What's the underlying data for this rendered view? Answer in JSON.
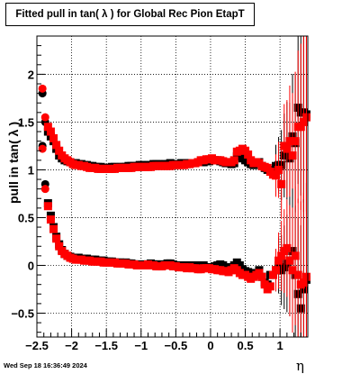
{
  "chart_data": {
    "type": "scatter",
    "title": "Fitted pull in tan( λ ) for Global Rec Pion EtapT",
    "xlabel": "η",
    "ylabel": "pull in tan( λ )",
    "xlim": [
      -2.5,
      1.4
    ],
    "ylim": [
      -0.75,
      2.4
    ],
    "grid": true,
    "x_ticks": [
      {
        "value": -2.5,
        "label": "−2.5"
      },
      {
        "value": -2.0,
        "label": "−2"
      },
      {
        "value": -1.5,
        "label": "−1.5"
      },
      {
        "value": -1.0,
        "label": "−1"
      },
      {
        "value": -0.5,
        "label": "−0.5"
      },
      {
        "value": 0.0,
        "label": "0"
      },
      {
        "value": 0.5,
        "label": "0.5"
      },
      {
        "value": 1.0,
        "label": "1"
      }
    ],
    "y_ticks": [
      {
        "value": -0.5,
        "label": "−0.5"
      },
      {
        "value": 0.0,
        "label": "0"
      },
      {
        "value": 0.5,
        "label": "0.5"
      },
      {
        "value": 1.0,
        "label": "1"
      },
      {
        "value": 1.5,
        "label": "1.5"
      },
      {
        "value": 2.0,
        "label": "2"
      }
    ],
    "series": [
      {
        "role": "sigma",
        "color": "#000000",
        "x": [
          -2.42,
          -2.38,
          -2.34,
          -2.3,
          -2.26,
          -2.22,
          -2.18,
          -2.14,
          -2.1,
          -2.06,
          -2.02,
          -1.98,
          -1.94,
          -1.9,
          -1.86,
          -1.82,
          -1.78,
          -1.74,
          -1.7,
          -1.66,
          -1.62,
          -1.58,
          -1.54,
          -1.5,
          -1.46,
          -1.42,
          -1.38,
          -1.34,
          -1.3,
          -1.26,
          -1.22,
          -1.18,
          -1.14,
          -1.1,
          -1.06,
          -1.02,
          -0.98,
          -0.94,
          -0.9,
          -0.86,
          -0.82,
          -0.78,
          -0.74,
          -0.7,
          -0.66,
          -0.62,
          -0.58,
          -0.54,
          -0.5,
          -0.46,
          -0.42,
          -0.38,
          -0.34,
          -0.3,
          -0.26,
          -0.22,
          -0.18,
          -0.14,
          -0.1,
          -0.06,
          -0.02,
          0.02,
          0.06,
          0.1,
          0.14,
          0.18,
          0.22,
          0.26,
          0.3,
          0.34,
          0.38,
          0.42,
          0.46,
          0.5,
          0.54,
          0.58,
          0.62,
          0.66,
          0.7,
          0.74,
          0.78,
          0.82,
          0.86,
          0.9,
          0.94,
          0.98,
          1.02,
          1.06,
          1.1,
          1.14,
          1.18,
          1.22,
          1.26,
          1.3,
          1.34,
          1.38
        ],
        "y": [
          1.8,
          1.5,
          1.4,
          1.35,
          1.3,
          1.22,
          1.15,
          1.12,
          1.1,
          1.09,
          1.08,
          1.07,
          1.07,
          1.06,
          1.06,
          1.05,
          1.05,
          1.04,
          1.04,
          1.03,
          1.03,
          1.03,
          1.02,
          1.02,
          1.02,
          1.03,
          1.03,
          1.02,
          1.03,
          1.03,
          1.03,
          1.04,
          1.04,
          1.04,
          1.04,
          1.05,
          1.05,
          1.04,
          1.05,
          1.05,
          1.06,
          1.06,
          1.06,
          1.05,
          1.06,
          1.06,
          1.07,
          1.06,
          1.06,
          1.06,
          1.07,
          1.07,
          1.06,
          1.07,
          1.07,
          1.07,
          1.08,
          1.08,
          1.08,
          1.09,
          1.09,
          1.1,
          1.1,
          1.1,
          1.09,
          1.08,
          1.07,
          1.08,
          1.06,
          1.07,
          1.14,
          1.15,
          1.12,
          1.1,
          1.08,
          1.06,
          1.05,
          1.07,
          1.08,
          1.04,
          1.02,
          1.0,
          1.0,
          0.98,
          1.04,
          1.05,
          1.05,
          1.15,
          1.2,
          1.12,
          1.35,
          1.28,
          1.65,
          1.6,
          1.6,
          1.58
        ]
      },
      {
        "role": "sigma",
        "color": "#ff0000",
        "x": [
          -2.42,
          -2.38,
          -2.34,
          -2.3,
          -2.26,
          -2.22,
          -2.18,
          -2.14,
          -2.1,
          -2.06,
          -2.02,
          -1.98,
          -1.94,
          -1.9,
          -1.86,
          -1.82,
          -1.78,
          -1.74,
          -1.7,
          -1.66,
          -1.62,
          -1.58,
          -1.54,
          -1.5,
          -1.46,
          -1.42,
          -1.38,
          -1.34,
          -1.3,
          -1.26,
          -1.22,
          -1.18,
          -1.14,
          -1.1,
          -1.06,
          -1.02,
          -0.98,
          -0.94,
          -0.9,
          -0.86,
          -0.82,
          -0.78,
          -0.74,
          -0.7,
          -0.66,
          -0.62,
          -0.58,
          -0.54,
          -0.5,
          -0.46,
          -0.42,
          -0.38,
          -0.34,
          -0.3,
          -0.26,
          -0.22,
          -0.18,
          -0.14,
          -0.1,
          -0.06,
          -0.02,
          0.02,
          0.06,
          0.1,
          0.14,
          0.18,
          0.22,
          0.26,
          0.3,
          0.34,
          0.38,
          0.42,
          0.46,
          0.5,
          0.54,
          0.58,
          0.62,
          0.66,
          0.7,
          0.74,
          0.78,
          0.82,
          0.86,
          0.9,
          0.94,
          0.98,
          1.02,
          1.06,
          1.1,
          1.14,
          1.18,
          1.22,
          1.26,
          1.3,
          1.34,
          1.38
        ],
        "y": [
          1.85,
          1.55,
          1.45,
          1.4,
          1.33,
          1.26,
          1.2,
          1.15,
          1.12,
          1.1,
          1.08,
          1.06,
          1.05,
          1.05,
          1.04,
          1.04,
          1.03,
          1.02,
          1.02,
          1.02,
          1.01,
          1.01,
          1.01,
          1.01,
          1.01,
          1.01,
          1.01,
          1.02,
          1.02,
          1.02,
          1.02,
          1.02,
          1.02,
          1.03,
          1.03,
          1.03,
          1.03,
          1.03,
          1.03,
          1.03,
          1.04,
          1.04,
          1.04,
          1.04,
          1.04,
          1.04,
          1.04,
          1.05,
          1.05,
          1.05,
          1.05,
          1.05,
          1.06,
          1.06,
          1.07,
          1.07,
          1.08,
          1.1,
          1.1,
          1.11,
          1.11,
          1.12,
          1.1,
          1.1,
          1.1,
          1.09,
          1.08,
          1.08,
          1.08,
          1.1,
          1.19,
          1.2,
          1.22,
          1.2,
          1.16,
          1.1,
          1.07,
          1.08,
          1.07,
          1.04,
          1.03,
          1.02,
          0.98,
          0.95,
          0.94,
          1.0,
          0.85,
          1.25,
          1.22,
          1.3,
          1.15,
          1.3,
          1.45,
          1.45,
          1.5,
          1.55
        ]
      },
      {
        "role": "mean",
        "color": "#000000",
        "x": [
          -2.42,
          -2.38,
          -2.34,
          -2.3,
          -2.26,
          -2.22,
          -2.18,
          -2.14,
          -2.1,
          -2.06,
          -2.02,
          -1.98,
          -1.94,
          -1.9,
          -1.86,
          -1.82,
          -1.78,
          -1.74,
          -1.7,
          -1.66,
          -1.62,
          -1.58,
          -1.54,
          -1.5,
          -1.46,
          -1.42,
          -1.38,
          -1.34,
          -1.3,
          -1.26,
          -1.22,
          -1.18,
          -1.14,
          -1.1,
          -1.06,
          -1.02,
          -0.98,
          -0.94,
          -0.9,
          -0.86,
          -0.82,
          -0.78,
          -0.74,
          -0.7,
          -0.66,
          -0.62,
          -0.58,
          -0.54,
          -0.5,
          -0.46,
          -0.42,
          -0.38,
          -0.34,
          -0.3,
          -0.26,
          -0.22,
          -0.18,
          -0.14,
          -0.1,
          -0.06,
          -0.02,
          0.02,
          0.06,
          0.1,
          0.14,
          0.18,
          0.22,
          0.26,
          0.3,
          0.34,
          0.38,
          0.42,
          0.46,
          0.5,
          0.54,
          0.58,
          0.62,
          0.66,
          0.7,
          0.74,
          0.78,
          0.82,
          0.86,
          0.9,
          0.94,
          0.98,
          1.02,
          1.06,
          1.1,
          1.14,
          1.18,
          1.22,
          1.26,
          1.3,
          1.34,
          1.38
        ],
        "y": [
          1.25,
          0.85,
          0.65,
          0.52,
          0.4,
          0.3,
          0.22,
          0.16,
          0.12,
          0.1,
          0.09,
          0.08,
          0.08,
          0.08,
          0.07,
          0.07,
          0.07,
          0.06,
          0.06,
          0.06,
          0.05,
          0.05,
          0.05,
          0.04,
          0.04,
          0.04,
          0.03,
          0.03,
          0.03,
          0.02,
          0.03,
          0.02,
          0.02,
          0.01,
          0.01,
          0.01,
          0.0,
          0.01,
          0.01,
          0.02,
          0.01,
          0.01,
          0.01,
          0.01,
          0.0,
          0.02,
          0.02,
          0.01,
          0.0,
          0.0,
          0.0,
          -0.01,
          0.0,
          0.0,
          -0.01,
          0.0,
          0.0,
          -0.01,
          0.0,
          -0.02,
          -0.02,
          -0.02,
          -0.01,
          0.0,
          0.01,
          0.0,
          -0.02,
          -0.03,
          -0.02,
          0.0,
          0.03,
          0.0,
          -0.04,
          -0.06,
          -0.07,
          -0.1,
          -0.08,
          -0.1,
          -0.05,
          -0.12,
          -0.18,
          -0.2,
          -0.1,
          -0.1,
          -0.05,
          0.0,
          -0.05,
          -0.02,
          0.02,
          0.05,
          0.15,
          -0.1,
          -0.3,
          -0.45,
          -0.25,
          -0.15
        ]
      },
      {
        "role": "mean",
        "color": "#ff0000",
        "x": [
          -2.42,
          -2.38,
          -2.34,
          -2.3,
          -2.26,
          -2.22,
          -2.18,
          -2.14,
          -2.1,
          -2.06,
          -2.02,
          -1.98,
          -1.94,
          -1.9,
          -1.86,
          -1.82,
          -1.78,
          -1.74,
          -1.7,
          -1.66,
          -1.62,
          -1.58,
          -1.54,
          -1.5,
          -1.46,
          -1.42,
          -1.38,
          -1.34,
          -1.3,
          -1.26,
          -1.22,
          -1.18,
          -1.14,
          -1.1,
          -1.06,
          -1.02,
          -0.98,
          -0.94,
          -0.9,
          -0.86,
          -0.82,
          -0.78,
          -0.74,
          -0.7,
          -0.66,
          -0.62,
          -0.58,
          -0.54,
          -0.5,
          -0.46,
          -0.42,
          -0.38,
          -0.34,
          -0.3,
          -0.26,
          -0.22,
          -0.18,
          -0.14,
          -0.1,
          -0.06,
          -0.02,
          0.02,
          0.06,
          0.1,
          0.14,
          0.18,
          0.22,
          0.26,
          0.3,
          0.34,
          0.38,
          0.42,
          0.46,
          0.5,
          0.54,
          0.58,
          0.62,
          0.66,
          0.7,
          0.74,
          0.78,
          0.82,
          0.86,
          0.9,
          0.94,
          0.98,
          1.02,
          1.06,
          1.1,
          1.14,
          1.18,
          1.22,
          1.26,
          1.3,
          1.34,
          1.38
        ],
        "y": [
          1.22,
          0.8,
          0.62,
          0.48,
          0.38,
          0.28,
          0.2,
          0.15,
          0.12,
          0.1,
          0.08,
          0.07,
          0.06,
          0.06,
          0.06,
          0.05,
          0.05,
          0.05,
          0.04,
          0.04,
          0.04,
          0.04,
          0.03,
          0.03,
          0.03,
          0.03,
          0.03,
          0.02,
          0.02,
          0.02,
          0.02,
          0.01,
          0.01,
          0.01,
          0.0,
          0.0,
          0.0,
          0.0,
          0.01,
          0.0,
          0.0,
          -0.01,
          -0.01,
          -0.01,
          0.0,
          0.0,
          0.0,
          -0.01,
          -0.01,
          -0.02,
          -0.02,
          -0.02,
          -0.03,
          -0.02,
          -0.03,
          -0.03,
          -0.04,
          -0.04,
          -0.03,
          -0.03,
          -0.03,
          -0.04,
          -0.04,
          -0.05,
          -0.05,
          -0.06,
          -0.06,
          -0.07,
          -0.05,
          -0.03,
          -0.05,
          -0.08,
          -0.1,
          -0.1,
          -0.12,
          -0.14,
          -0.12,
          -0.1,
          -0.08,
          -0.12,
          -0.2,
          -0.25,
          -0.22,
          -0.1,
          -0.05,
          0.05,
          0.1,
          0.15,
          0.18,
          0.05,
          -0.05,
          0.1,
          -0.1,
          -0.2,
          -0.18,
          -0.12
        ]
      }
    ]
  }
}
